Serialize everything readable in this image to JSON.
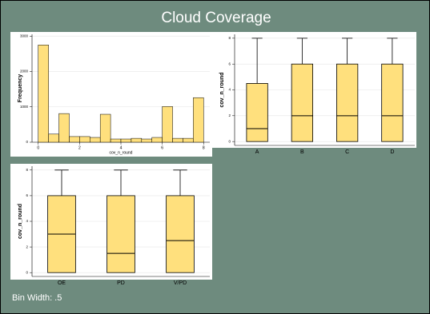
{
  "title": "Cloud Coverage",
  "note": "Bin Width: .5",
  "chart_data": [
    {
      "type": "histogram",
      "xlabel": "cov_n_round",
      "ylabel": "Frequency",
      "bins": [
        0,
        0.5,
        1,
        1.5,
        2,
        2.5,
        3,
        3.5,
        4,
        4.5,
        5,
        5.5,
        6,
        6.5,
        7,
        7.5,
        8
      ],
      "values": [
        2750,
        230,
        810,
        160,
        160,
        135,
        790,
        90,
        90,
        110,
        90,
        135,
        1010,
        110,
        110,
        1260
      ],
      "color": "#ffe07d",
      "xlim": [
        -0.3,
        8.3
      ],
      "xticks": [
        0,
        2,
        4,
        6,
        8
      ],
      "ylim": [
        0,
        3050
      ],
      "yticks": [
        0,
        1000,
        2000,
        3000
      ],
      "grid": true
    },
    {
      "type": "box",
      "ylabel": "cov_n_round",
      "categories": [
        "A",
        "B",
        "C",
        "D"
      ],
      "min": [
        0,
        0,
        0,
        0
      ],
      "q1": [
        0,
        0,
        0,
        0
      ],
      "median": [
        1,
        2,
        2,
        2
      ],
      "q3": [
        4.5,
        6,
        6,
        6
      ],
      "max": [
        8,
        8,
        8,
        8
      ],
      "color": "#ffe07d",
      "ylim": [
        -0.3,
        8.3
      ],
      "yticks": [
        0,
        2,
        4,
        6,
        8
      ],
      "grid": true
    },
    {
      "type": "box",
      "ylabel": "cov_n_round",
      "categories": [
        "OE",
        "PD",
        "V/PD"
      ],
      "min": [
        0,
        0,
        0
      ],
      "q1": [
        0,
        0,
        0
      ],
      "median": [
        3,
        1.5,
        2.5
      ],
      "q3": [
        6,
        6,
        6
      ],
      "max": [
        8,
        8,
        8
      ],
      "color": "#ffe07d",
      "ylim": [
        -0.3,
        8.3
      ],
      "yticks": [
        0,
        2,
        4,
        6,
        8
      ],
      "grid": true
    }
  ]
}
